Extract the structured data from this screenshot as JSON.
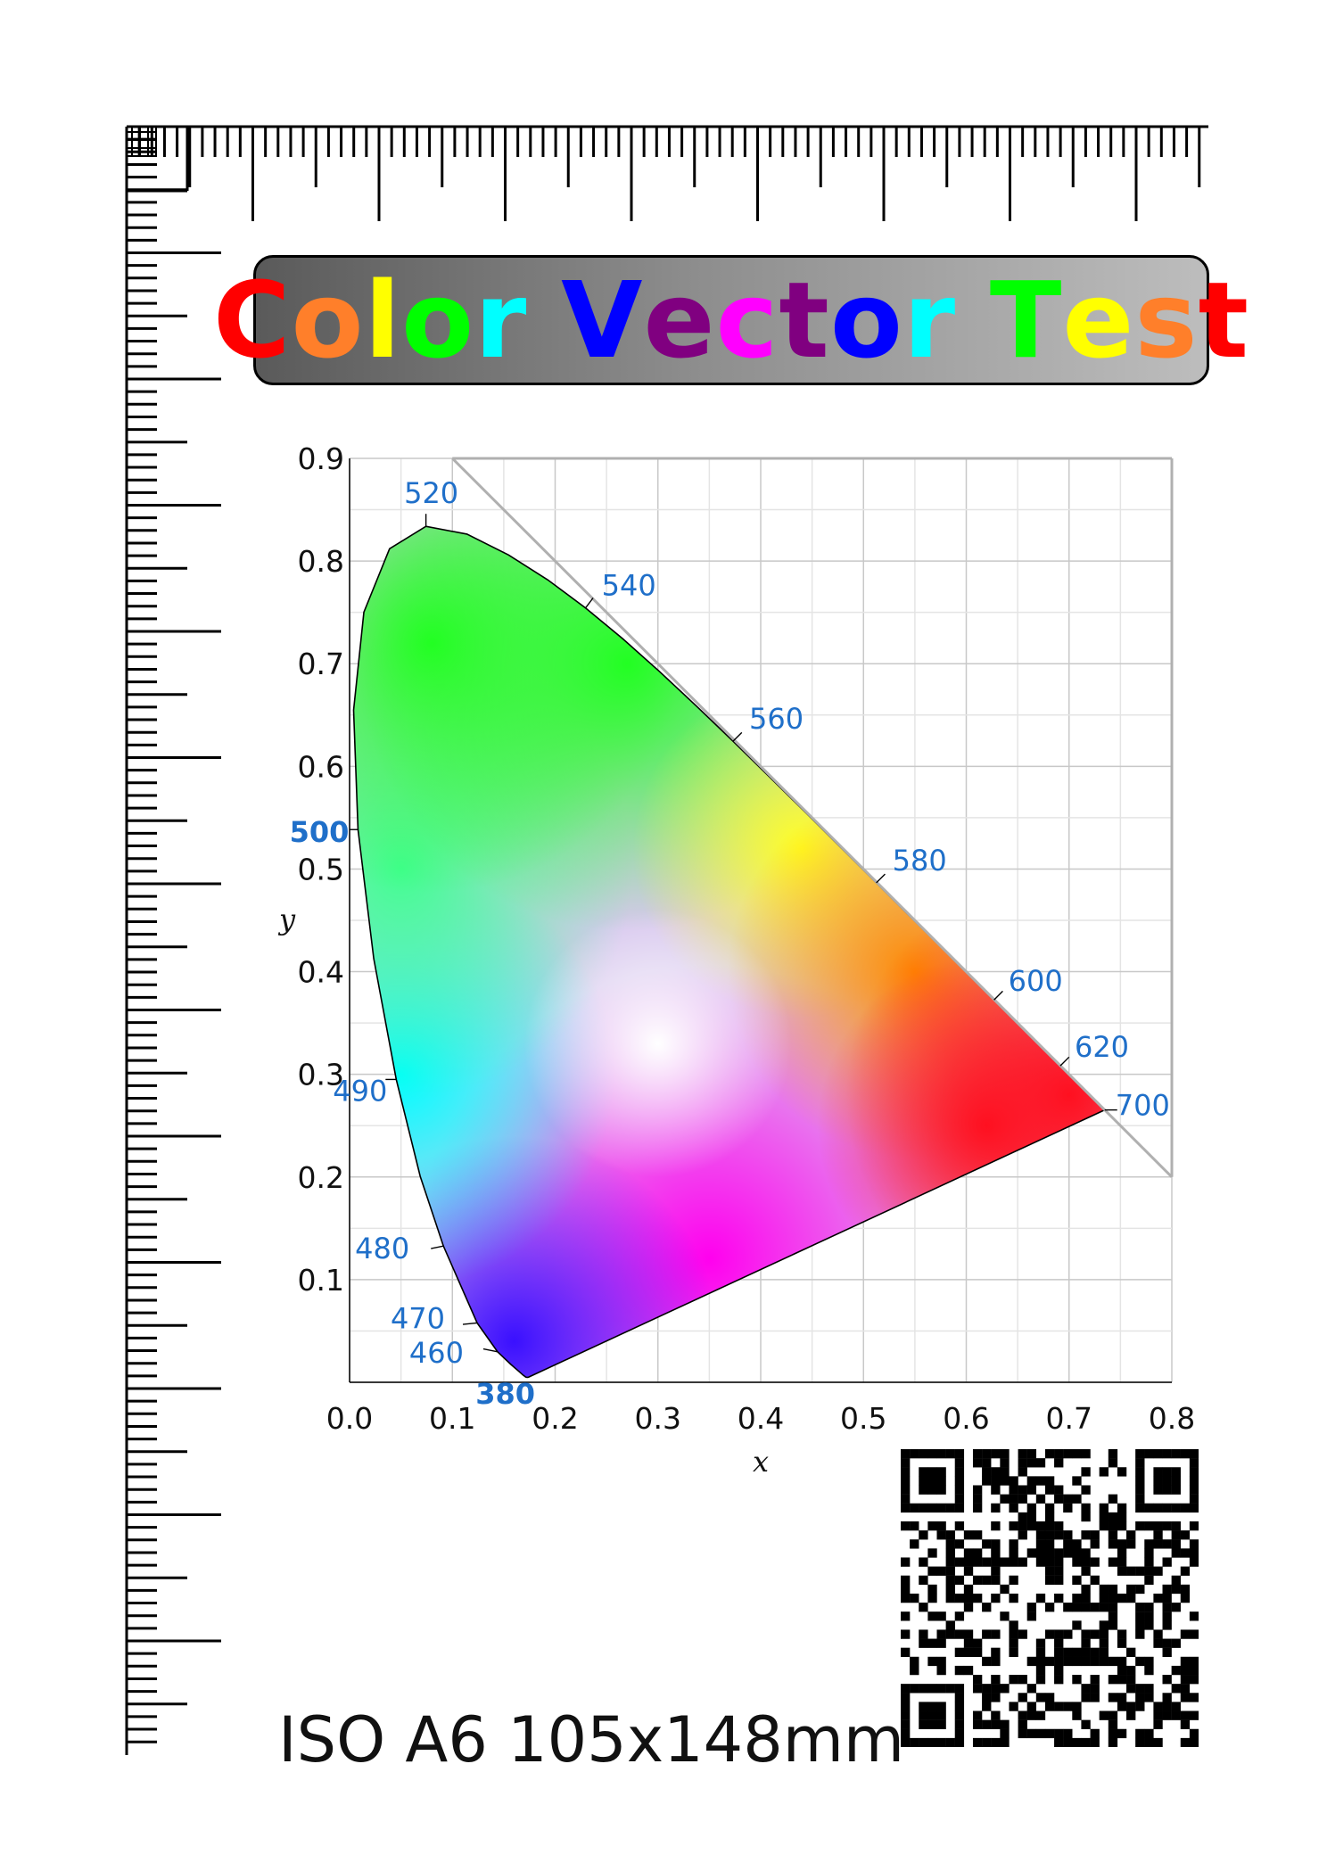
{
  "title": {
    "letters": [
      {
        "ch": "C",
        "color": "#ff0000"
      },
      {
        "ch": "o",
        "color": "#ff7f2a"
      },
      {
        "ch": "l",
        "color": "#ffff00"
      },
      {
        "ch": "o",
        "color": "#00ff00"
      },
      {
        "ch": "r",
        "color": "#00ffff"
      },
      {
        "ch": " ",
        "color": "#000000"
      },
      {
        "ch": "V",
        "color": "#0000ff"
      },
      {
        "ch": "e",
        "color": "#800080"
      },
      {
        "ch": "c",
        "color": "#ff00ff"
      },
      {
        "ch": "t",
        "color": "#800080"
      },
      {
        "ch": "o",
        "color": "#0000ff"
      },
      {
        "ch": "r",
        "color": "#00ffff"
      },
      {
        "ch": " ",
        "color": "#000000"
      },
      {
        "ch": "T",
        "color": "#00ff00"
      },
      {
        "ch": "e",
        "color": "#ffff00"
      },
      {
        "ch": "s",
        "color": "#ff7f2a"
      },
      {
        "ch": "t",
        "color": "#ff0000"
      }
    ]
  },
  "chart_data": {
    "type": "chromaticity-diagram",
    "xlabel": "x",
    "ylabel": "y",
    "xlim": [
      0,
      0.8
    ],
    "ylim": [
      0,
      0.9
    ],
    "x_ticks": [
      "0.0",
      "0.1",
      "0.2",
      "0.3",
      "0.4",
      "0.5",
      "0.6",
      "0.7",
      "0.8"
    ],
    "y_ticks": [
      "0.1",
      "0.2",
      "0.3",
      "0.4",
      "0.5",
      "0.6",
      "0.7",
      "0.8",
      "0.9"
    ],
    "grid": true,
    "locus": [
      [
        0.1741,
        0.005
      ],
      [
        0.1738,
        0.0049
      ],
      [
        0.1733,
        0.0048
      ],
      [
        0.1726,
        0.0048
      ],
      [
        0.1714,
        0.0051
      ],
      [
        0.1689,
        0.0069
      ],
      [
        0.1644,
        0.0109
      ],
      [
        0.1566,
        0.0177
      ],
      [
        0.144,
        0.0297
      ],
      [
        0.1241,
        0.0578
      ],
      [
        0.0913,
        0.1327
      ],
      [
        0.0687,
        0.2007
      ],
      [
        0.0454,
        0.295
      ],
      [
        0.0235,
        0.4127
      ],
      [
        0.0082,
        0.5384
      ],
      [
        0.0039,
        0.6548
      ],
      [
        0.0139,
        0.7502
      ],
      [
        0.0389,
        0.812
      ],
      [
        0.0743,
        0.8338
      ],
      [
        0.1142,
        0.8262
      ],
      [
        0.1547,
        0.8059
      ],
      [
        0.1929,
        0.7816
      ],
      [
        0.2296,
        0.7543
      ],
      [
        0.2658,
        0.7243
      ],
      [
        0.3016,
        0.6923
      ],
      [
        0.3373,
        0.6589
      ],
      [
        0.3731,
        0.6245
      ],
      [
        0.4087,
        0.5896
      ],
      [
        0.4441,
        0.5547
      ],
      [
        0.4788,
        0.5202
      ],
      [
        0.5125,
        0.4866
      ],
      [
        0.5448,
        0.4544
      ],
      [
        0.5752,
        0.4242
      ],
      [
        0.6029,
        0.3965
      ],
      [
        0.627,
        0.3725
      ],
      [
        0.6482,
        0.3514
      ],
      [
        0.6658,
        0.334
      ],
      [
        0.6801,
        0.3197
      ],
      [
        0.6915,
        0.3083
      ],
      [
        0.7006,
        0.2993
      ],
      [
        0.7079,
        0.292
      ],
      [
        0.714,
        0.2859
      ],
      [
        0.719,
        0.2809
      ],
      [
        0.723,
        0.277
      ],
      [
        0.726,
        0.274
      ],
      [
        0.7283,
        0.2717
      ],
      [
        0.73,
        0.27
      ],
      [
        0.7311,
        0.2689
      ],
      [
        0.732,
        0.268
      ],
      [
        0.7327,
        0.2673
      ],
      [
        0.7334,
        0.2666
      ],
      [
        0.734,
        0.266
      ],
      [
        0.7344,
        0.2656
      ],
      [
        0.7346,
        0.2654
      ],
      [
        0.7347,
        0.2653
      ]
    ],
    "wavelength_labels": [
      {
        "nm": "380",
        "x": 0.1741,
        "y": 0.005
      },
      {
        "nm": "460",
        "x": 0.144,
        "y": 0.0297
      },
      {
        "nm": "470",
        "x": 0.1241,
        "y": 0.0578
      },
      {
        "nm": "480",
        "x": 0.0913,
        "y": 0.1327
      },
      {
        "nm": "490",
        "x": 0.0454,
        "y": 0.295
      },
      {
        "nm": "500",
        "x": 0.0082,
        "y": 0.5384
      },
      {
        "nm": "520",
        "x": 0.0743,
        "y": 0.8338
      },
      {
        "nm": "540",
        "x": 0.2296,
        "y": 0.7543
      },
      {
        "nm": "560",
        "x": 0.3731,
        "y": 0.6245
      },
      {
        "nm": "580",
        "x": 0.5125,
        "y": 0.4866
      },
      {
        "nm": "600",
        "x": 0.627,
        "y": 0.3725
      },
      {
        "nm": "620",
        "x": 0.6915,
        "y": 0.3083
      },
      {
        "nm": "700",
        "x": 0.7347,
        "y": 0.2653
      }
    ],
    "boundary_line": [
      [
        0.1,
        0.9
      ],
      [
        0.8,
        0.2
      ]
    ],
    "label_color": "#1f6fc9"
  },
  "footer": {
    "text": "ISO A6 105x148mm"
  },
  "qr": {
    "icon": "qr-code"
  }
}
